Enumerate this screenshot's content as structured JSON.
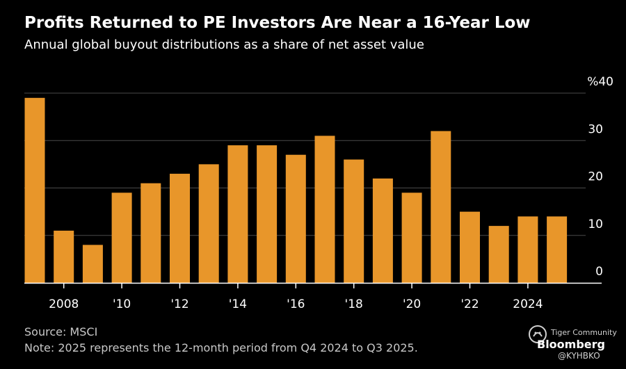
{
  "header": {
    "title": "Profits Returned to PE Investors Are Near a 16-Year Low",
    "subtitle": "Annual global buyout distributions as a share of net asset value"
  },
  "footer": {
    "source": "Source: MSCI",
    "note": "Note: 2025 represents the 12-month period from Q4 2024 to Q3 2025."
  },
  "watermark": {
    "community": "Tiger Community",
    "brand": "Bloomberg",
    "handle": "@KYHBKO"
  },
  "colors": {
    "background": "#000000",
    "bar": "#e8962a",
    "gridline": "#4a4a4a",
    "axis": "#ffffff",
    "tick_text": "#ffffff"
  },
  "chart_data": {
    "type": "bar",
    "title": "Profits Returned to PE Investors Are Near a 16-Year Low",
    "subtitle": "Annual global buyout distributions as a share of net asset value",
    "xlabel": "",
    "ylabel": "",
    "y_unit": "%",
    "ylim": [
      0,
      40
    ],
    "y_ticks": [
      0,
      10,
      20,
      30,
      40
    ],
    "y_tick_labels": [
      "0",
      "10",
      "20",
      "30",
      "%40"
    ],
    "grid": true,
    "categories": [
      "2007",
      "2008",
      "2009",
      "2010",
      "2011",
      "2012",
      "2013",
      "2014",
      "2015",
      "2016",
      "2017",
      "2018",
      "2019",
      "2020",
      "2021",
      "2022",
      "2023",
      "2024",
      "2025"
    ],
    "values": [
      39,
      11,
      8,
      19,
      21,
      23,
      25,
      29,
      29,
      27,
      31,
      26,
      22,
      19,
      32,
      15,
      12,
      14,
      14
    ],
    "x_ticks": [
      {
        "year": "2008",
        "label": "2008"
      },
      {
        "year": "2010",
        "label": "'10"
      },
      {
        "year": "2012",
        "label": "'12"
      },
      {
        "year": "2014",
        "label": "'14"
      },
      {
        "year": "2016",
        "label": "'16"
      },
      {
        "year": "2018",
        "label": "'18"
      },
      {
        "year": "2020",
        "label": "'20"
      },
      {
        "year": "2022",
        "label": "'22"
      },
      {
        "year": "2024",
        "label": "2024"
      }
    ]
  }
}
